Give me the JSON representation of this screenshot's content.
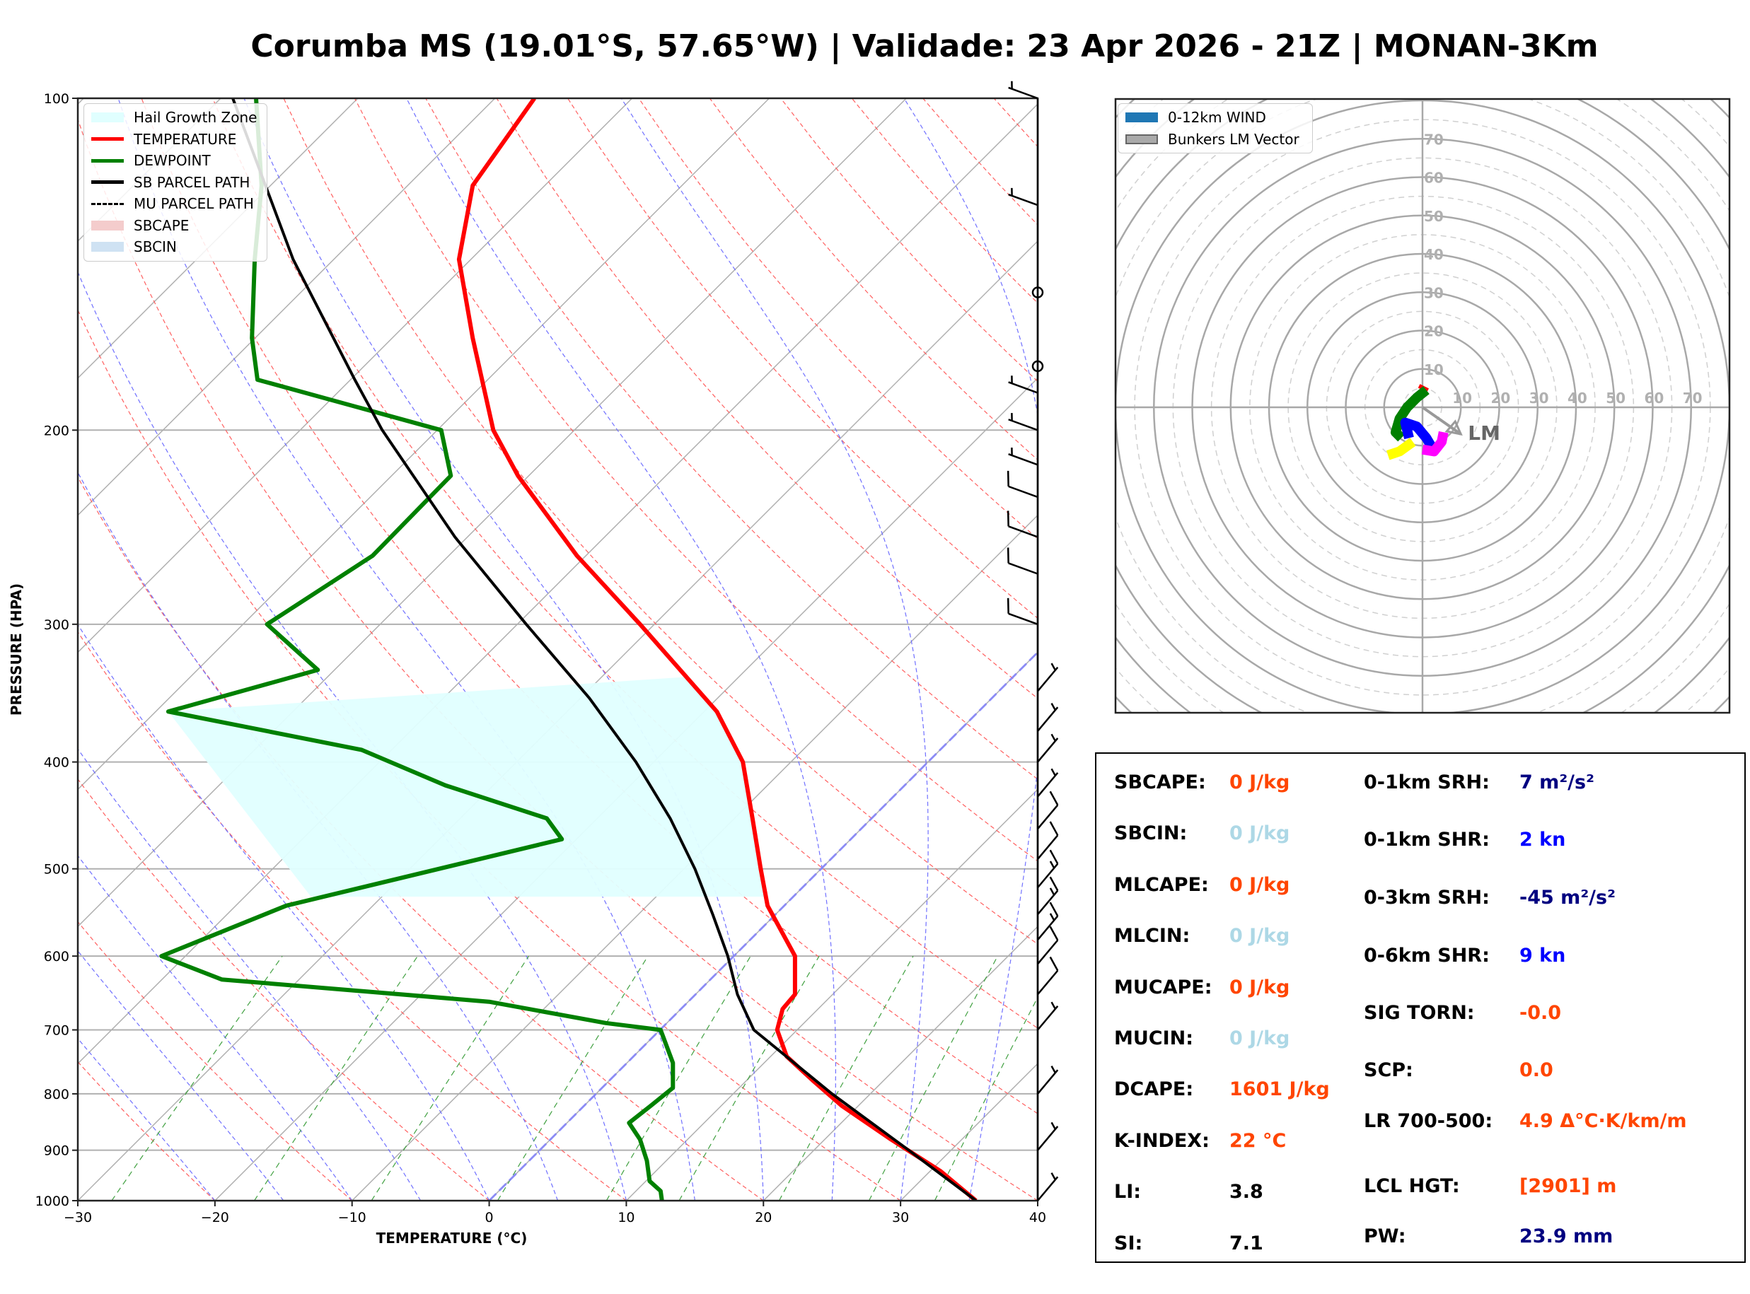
{
  "title": "Corumba MS (19.01°S, 57.65°W) | Validade: 23 Apr 2026 - 21Z | MONAN-3Km",
  "chart_data": [
    {
      "type": "line",
      "name": "skew-t",
      "xlabel": "TEMPERATURE (°C)",
      "ylabel": "PRESSURE (HPA)",
      "xlim": [
        -30,
        40
      ],
      "ylim": [
        1000,
        100
      ],
      "yscale": "log",
      "x_ticks": [
        -30,
        -20,
        -10,
        0,
        10,
        20,
        30,
        40
      ],
      "x_tick_labels": [
        "−30",
        "−20",
        "−10",
        "0",
        "10",
        "20",
        "30",
        "40"
      ],
      "y_ticks": [
        100,
        200,
        300,
        400,
        500,
        600,
        700,
        800,
        900,
        1000
      ],
      "y_tick_labels": [
        "100",
        "200",
        "300",
        "400",
        "500",
        "600",
        "700",
        "800",
        "900",
        "1000"
      ],
      "grid": true,
      "legend_position": "top-left",
      "legend": [
        {
          "label": "Hail Growth Zone",
          "kind": "patch",
          "color": "#e0ffff"
        },
        {
          "label": "TEMPERATURE",
          "kind": "line",
          "color": "#ff0000"
        },
        {
          "label": "DEWPOINT",
          "kind": "line",
          "color": "#008000"
        },
        {
          "label": "SB PARCEL PATH",
          "kind": "line",
          "color": "#000000"
        },
        {
          "label": "MU PARCEL PATH",
          "kind": "dashed",
          "color": "#000000"
        },
        {
          "label": "SBCAPE",
          "kind": "patch",
          "color": "#f4cccc"
        },
        {
          "label": "SBCIN",
          "kind": "patch",
          "color": "#cfe2f3"
        }
      ],
      "note_x_values": "x values are the horizontal axis readout at each pressure level (skewed coordinates)",
      "series": [
        {
          "name": "TEMPERATURE",
          "color": "#ff0000",
          "points": [
            [
              100,
              3.3
            ],
            [
              120,
              -1.2
            ],
            [
              140,
              -2.2
            ],
            [
              165,
              -1.2
            ],
            [
              200,
              0.3
            ],
            [
              220,
              2.1
            ],
            [
              260,
              6.4
            ],
            [
              300,
              11.0
            ],
            [
              360,
              16.6
            ],
            [
              400,
              18.5
            ],
            [
              450,
              19.2
            ],
            [
              500,
              19.8
            ],
            [
              540,
              20.3
            ],
            [
              600,
              22.3
            ],
            [
              650,
              22.3
            ],
            [
              670,
              21.4
            ],
            [
              700,
              21.0
            ],
            [
              740,
              21.7
            ],
            [
              780,
              23.7
            ],
            [
              820,
              25.7
            ],
            [
              880,
              29.3
            ],
            [
              940,
              32.9
            ],
            [
              1000,
              35.5
            ]
          ]
        },
        {
          "name": "DEWPOINT",
          "color": "#008000",
          "points": [
            [
              100,
              -17.0
            ],
            [
              120,
              -16.6
            ],
            [
              140,
              -17.1
            ],
            [
              165,
              -17.3
            ],
            [
              180,
              -16.9
            ],
            [
              200,
              -3.5
            ],
            [
              220,
              -2.8
            ],
            [
              260,
              -8.5
            ],
            [
              300,
              -16.2
            ],
            [
              330,
              -12.5
            ],
            [
              360,
              -23.4
            ],
            [
              390,
              -9.3
            ],
            [
              420,
              -3.2
            ],
            [
              450,
              4.2
            ],
            [
              470,
              5.3
            ],
            [
              540,
              -14.8
            ],
            [
              600,
              -23.9
            ],
            [
              630,
              -19.5
            ],
            [
              660,
              0.0
            ],
            [
              690,
              8.5
            ],
            [
              700,
              12.5
            ],
            [
              750,
              13.4
            ],
            [
              790,
              13.4
            ],
            [
              820,
              11.8
            ],
            [
              850,
              10.2
            ],
            [
              880,
              11.0
            ],
            [
              920,
              11.5
            ],
            [
              960,
              11.7
            ],
            [
              980,
              12.5
            ],
            [
              1000,
              12.6
            ]
          ]
        },
        {
          "name": "SB PARCEL PATH",
          "color": "#000000",
          "points": [
            [
              100,
              -18.7
            ],
            [
              140,
              -14.3
            ],
            [
              180,
              -9.8
            ],
            [
              200,
              -7.8
            ],
            [
              250,
              -2.5
            ],
            [
              300,
              2.7
            ],
            [
              350,
              7.3
            ],
            [
              400,
              10.7
            ],
            [
              450,
              13.2
            ],
            [
              500,
              15.0
            ],
            [
              550,
              16.3
            ],
            [
              600,
              17.4
            ],
            [
              650,
              18.1
            ],
            [
              700,
              19.3
            ],
            [
              800,
              25.0
            ],
            [
              900,
              30.6
            ],
            [
              1000,
              35.5
            ]
          ]
        }
      ],
      "hail_growth_zone": {
        "p_top": 335,
        "p_bottom": 530,
        "color": "#e0ffff"
      },
      "wind_barbs": [
        {
          "p": 100,
          "speed_kn": 5
        },
        {
          "p": 125,
          "speed_kn": 5
        },
        {
          "p": 150,
          "speed_kn": 0
        },
        {
          "p": 175,
          "speed_kn": 0
        },
        {
          "p": 185,
          "speed_kn": 5
        },
        {
          "p": 200,
          "speed_kn": 5
        },
        {
          "p": 215,
          "speed_kn": 5
        },
        {
          "p": 230,
          "speed_kn": 10
        },
        {
          "p": 250,
          "speed_kn": 10
        },
        {
          "p": 270,
          "speed_kn": 10
        },
        {
          "p": 300,
          "speed_kn": 10
        },
        {
          "p": 345,
          "speed_kn": 5
        },
        {
          "p": 375,
          "speed_kn": 5
        },
        {
          "p": 400,
          "speed_kn": 5
        },
        {
          "p": 430,
          "speed_kn": 5
        },
        {
          "p": 460,
          "speed_kn": 10
        },
        {
          "p": 490,
          "speed_kn": 10
        },
        {
          "p": 520,
          "speed_kn": 15
        },
        {
          "p": 550,
          "speed_kn": 15
        },
        {
          "p": 580,
          "speed_kn": 15
        },
        {
          "p": 610,
          "speed_kn": 10
        },
        {
          "p": 650,
          "speed_kn": 10
        },
        {
          "p": 700,
          "speed_kn": 5
        },
        {
          "p": 800,
          "speed_kn": 5
        },
        {
          "p": 900,
          "speed_kn": 5
        },
        {
          "p": 1000,
          "speed_kn": 5
        }
      ]
    },
    {
      "type": "scatter",
      "name": "hodograph",
      "radial_ticks": [
        10,
        20,
        30,
        40,
        50,
        60,
        70
      ],
      "radial_tick_labels": [
        "10",
        "20",
        "30",
        "40",
        "50",
        "60",
        "70"
      ],
      "range_kn": [
        -80,
        80
      ],
      "legend_position": "top-left",
      "legend": [
        {
          "label": "0-12km WIND",
          "kind": "patch",
          "color": "#1f77b4"
        },
        {
          "label": "Bunkers LM Vector",
          "kind": "patch",
          "color": "#aaaaaa"
        }
      ],
      "segments": [
        {
          "layer": "red",
          "color": "#ff0000",
          "uv": [
            [
              0.5,
              5.5
            ],
            [
              0.0,
              4.5
            ]
          ]
        },
        {
          "layer": "green",
          "color": "#008000",
          "uv": [
            [
              1.0,
              4.5
            ],
            [
              -1.5,
              2.5
            ],
            [
              -4.0,
              0.0
            ],
            [
              -6.0,
              -3.0
            ],
            [
              -7.0,
              -6.5
            ],
            [
              -5.5,
              -8.0
            ]
          ]
        },
        {
          "layer": "blue",
          "color": "#0000ff",
          "uv": [
            [
              -3.5,
              -8.0
            ],
            [
              -4.5,
              -4.0
            ],
            [
              -1.5,
              -5.0
            ],
            [
              1.0,
              -8.0
            ],
            [
              2.5,
              -10.5
            ]
          ]
        },
        {
          "layer": "yellow",
          "color": "#ffff00",
          "uv": [
            [
              -2.5,
              -9.0
            ],
            [
              -6.0,
              -11.5
            ],
            [
              -9.0,
              -12.5
            ]
          ]
        },
        {
          "layer": "magenta",
          "color": "#ff00ff",
          "uv": [
            [
              0.0,
              -11.0
            ],
            [
              3.0,
              -11.5
            ],
            [
              5.0,
              -9.0
            ],
            [
              5.5,
              -6.5
            ]
          ]
        }
      ],
      "bunkers_lm": {
        "u": 10,
        "v": -7,
        "label": "LM"
      }
    }
  ],
  "stats": {
    "left": [
      {
        "label": "SBCAPE:",
        "value": "0 J/kg",
        "color": "#ff4500"
      },
      {
        "label": "SBCIN:",
        "value": "0 J/kg",
        "color": "#add8e6"
      },
      {
        "label": "MLCAPE:",
        "value": "0 J/kg",
        "color": "#ff4500"
      },
      {
        "label": "MLCIN:",
        "value": "0 J/kg",
        "color": "#add8e6"
      },
      {
        "label": "MUCAPE:",
        "value": "0 J/kg",
        "color": "#ff4500"
      },
      {
        "label": "MUCIN:",
        "value": "0 J/kg",
        "color": "#add8e6"
      },
      {
        "label": "DCAPE:",
        "value": "1601 J/kg",
        "color": "#ff4500"
      },
      {
        "label": "K-INDEX:",
        "value": "22 °C",
        "color": "#ff4500"
      },
      {
        "label": "LI:",
        "value": "3.8",
        "color": "#000000"
      },
      {
        "label": "SI:",
        "value": "7.1",
        "color": "#000000"
      }
    ],
    "right": [
      {
        "label": "0-1km SRH:",
        "value": "7 m²/s²",
        "color": "#000080"
      },
      {
        "label": "0-1km SHR:",
        "value": "2 kn",
        "color": "#0000ff"
      },
      {
        "label": "0-3km SRH:",
        "value": "-45 m²/s²",
        "color": "#000080"
      },
      {
        "label": "0-6km SHR:",
        "value": "9 kn",
        "color": "#0000ff"
      },
      {
        "label": "SIG TORN:",
        "value": "-0.0",
        "color": "#ff4500"
      },
      {
        "label": "SCP:",
        "value": "0.0",
        "color": "#ff4500"
      },
      {
        "label": "LR 700-500:",
        "value": "4.9 Δ°C·K/km/m",
        "color": "#ff4500"
      },
      {
        "label": "LCL HGT:",
        "value": "[2901] m",
        "color": "#ff4500"
      },
      {
        "label": "PW:",
        "value": "23.9 mm",
        "color": "#000080"
      }
    ]
  }
}
